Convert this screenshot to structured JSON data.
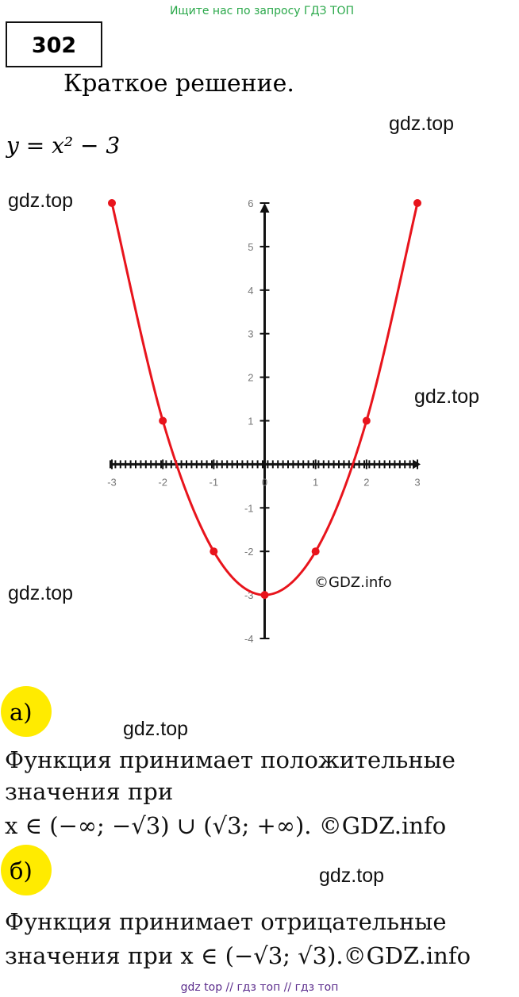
{
  "watermark_top": "Ищите нас по запросу ГДЗ ТОП",
  "problem_number": "302",
  "heading": "Краткое решение.",
  "formula": "y = x² − 3",
  "watermarks": [
    "gdz.top",
    "gdz.top",
    "gdz.top",
    "gdz.top",
    "gdz.top",
    "gdz.top"
  ],
  "chart_data": {
    "type": "line",
    "x": [
      -3,
      -2,
      -1,
      0,
      1,
      2,
      3
    ],
    "values": [
      6,
      1,
      -2,
      -3,
      -2,
      1,
      6
    ],
    "color": "#e8141c",
    "xlim": [
      -3,
      3
    ],
    "ylim": [
      -4,
      6
    ],
    "xticks": [
      -3,
      -2,
      -1,
      0,
      1,
      2,
      3
    ],
    "yticks": [
      -4,
      -3,
      -2,
      -1,
      1,
      2,
      3,
      4,
      5,
      6
    ],
    "annotation": "©GDZ.info"
  },
  "parts": [
    {
      "label": "а)",
      "lines": [
        "Функция принимает положительные",
        "значения при",
        "x ∈ (−∞; −√3) ∪ (√3; +∞). ©GDZ.info"
      ]
    },
    {
      "label": "б)",
      "lines": [
        "Функция   принимает   отрицательные",
        "значения при x ∈ (−√3; √3).©GDZ.info"
      ]
    }
  ],
  "footer": "gdz top  //  гдз топ  //  гдз топ"
}
